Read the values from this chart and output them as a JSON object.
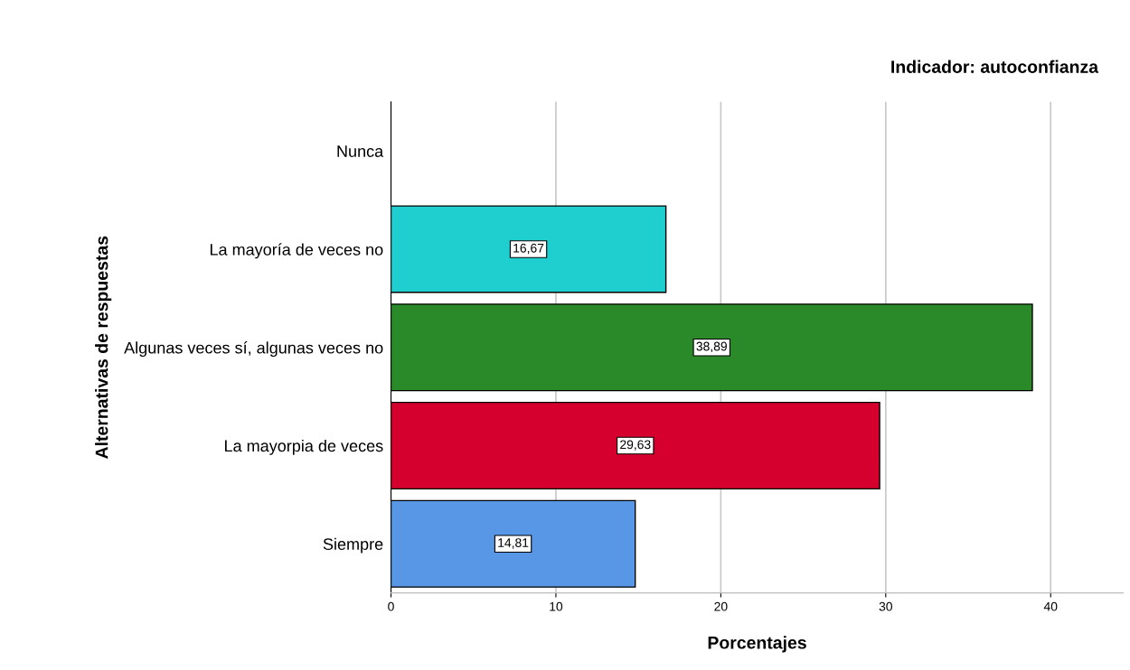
{
  "chart_data": {
    "type": "bar",
    "orientation": "horizontal",
    "title": "Indicador: autoconfianza",
    "xlabel": "Porcentajes",
    "ylabel": "Alternativas de respuestas",
    "categories": [
      "Nunca",
      "La mayoría de veces no",
      "Algunas veces sí, algunas veces no",
      "La mayorpia de veces",
      "Siempre"
    ],
    "values": [
      null,
      16.67,
      38.89,
      29.63,
      14.81
    ],
    "value_labels": [
      null,
      "16,67",
      "38,89",
      "29,63",
      "14,81"
    ],
    "colors": [
      "#808080",
      "#1fcfcf",
      "#2a8a2a",
      "#d6002e",
      "#5897e6"
    ],
    "xlim": [
      0,
      44.4
    ],
    "xticks": [
      0,
      10,
      20,
      30,
      40
    ],
    "grid": "x",
    "legend": false
  }
}
